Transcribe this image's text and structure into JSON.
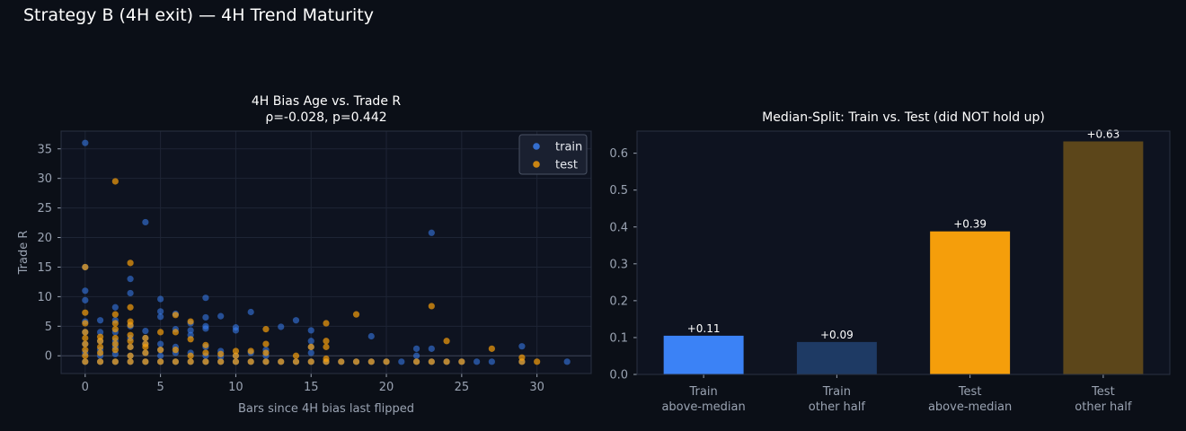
{
  "figure": {
    "title": "Strategy B (4H exit) — 4H Trend Maturity"
  },
  "colors": {
    "background": "#0b0f17",
    "axes_bg": "#0e1320",
    "grid": "#1e2535",
    "spine": "#2a3142",
    "train": "#3b82f6",
    "test": "#f59e0b",
    "train_dim": "#1e3a64",
    "test_dim": "#5c461a"
  },
  "chart_data": [
    {
      "type": "scatter",
      "title": "4H Bias Age vs. Trade R",
      "subtitle": "ρ=-0.028, p=0.442",
      "xlabel": "Bars since 4H bias last flipped",
      "ylabel": "Trade R",
      "xlim": [
        -1.6,
        33.6
      ],
      "ylim": [
        -3,
        38
      ],
      "xticks": [
        0,
        5,
        10,
        15,
        20,
        25,
        30
      ],
      "yticks": [
        0,
        5,
        10,
        15,
        20,
        25,
        30,
        35
      ],
      "grid": true,
      "legend": "top-right",
      "series": [
        {
          "name": "train",
          "points": [
            [
              0,
              36
            ],
            [
              0,
              15
            ],
            [
              0,
              11
            ],
            [
              0,
              9.4
            ],
            [
              0,
              5.8
            ],
            [
              0,
              4
            ],
            [
              0,
              2
            ],
            [
              0,
              0.5
            ],
            [
              0,
              -1
            ],
            [
              1,
              6
            ],
            [
              1,
              4
            ],
            [
              1,
              2.5
            ],
            [
              1,
              1
            ],
            [
              1,
              0
            ],
            [
              1,
              -1
            ],
            [
              2,
              8.2
            ],
            [
              2,
              6
            ],
            [
              2,
              4
            ],
            [
              2,
              2.5
            ],
            [
              2,
              1.5
            ],
            [
              2,
              0.3
            ],
            [
              2,
              -1
            ],
            [
              3,
              13
            ],
            [
              3,
              10.6
            ],
            [
              3,
              5
            ],
            [
              3,
              3
            ],
            [
              3,
              1.5
            ],
            [
              3,
              0
            ],
            [
              3,
              -1
            ],
            [
              4,
              22.6
            ],
            [
              4,
              4.2
            ],
            [
              4,
              3
            ],
            [
              4,
              2
            ],
            [
              4,
              0.5
            ],
            [
              4,
              -1
            ],
            [
              5,
              9.6
            ],
            [
              5,
              7.5
            ],
            [
              5,
              6.6
            ],
            [
              5,
              2
            ],
            [
              5,
              1
            ],
            [
              5,
              0
            ],
            [
              5,
              -1
            ],
            [
              6,
              7.1
            ],
            [
              6,
              4.5
            ],
            [
              6,
              1.5
            ],
            [
              6,
              0.5
            ],
            [
              6,
              -1
            ],
            [
              7,
              5.5
            ],
            [
              7,
              4.3
            ],
            [
              7,
              3.5
            ],
            [
              7,
              0.5
            ],
            [
              7,
              -1
            ],
            [
              8,
              9.8
            ],
            [
              8,
              6.5
            ],
            [
              8,
              5
            ],
            [
              8,
              4.6
            ],
            [
              8,
              1.5
            ],
            [
              8,
              0
            ],
            [
              8,
              -1
            ],
            [
              9,
              6.7
            ],
            [
              9,
              0.8
            ],
            [
              9,
              -0.2
            ],
            [
              9,
              -1
            ],
            [
              10,
              4.8
            ],
            [
              10,
              4.3
            ],
            [
              10,
              0
            ],
            [
              10,
              -1
            ],
            [
              11,
              7.4
            ],
            [
              11,
              0.5
            ],
            [
              11,
              -1
            ],
            [
              12,
              1
            ],
            [
              12,
              0
            ],
            [
              12,
              -1
            ],
            [
              13,
              4.9
            ],
            [
              13,
              -1
            ],
            [
              14,
              6
            ],
            [
              14,
              -1
            ],
            [
              15,
              4.3
            ],
            [
              15,
              2.5
            ],
            [
              15,
              1.5
            ],
            [
              15,
              0.5
            ],
            [
              15,
              -1
            ],
            [
              16,
              -1
            ],
            [
              17,
              -1
            ],
            [
              18,
              -1
            ],
            [
              19,
              3.3
            ],
            [
              19,
              -1
            ],
            [
              20,
              -1
            ],
            [
              21,
              -1
            ],
            [
              22,
              1.2
            ],
            [
              22,
              0
            ],
            [
              22,
              -1
            ],
            [
              23,
              20.8
            ],
            [
              23,
              1.2
            ],
            [
              23,
              -1
            ],
            [
              24,
              -1
            ],
            [
              25,
              -1
            ],
            [
              26,
              -1
            ],
            [
              27,
              -1
            ],
            [
              29,
              1.6
            ],
            [
              29,
              -1
            ],
            [
              32,
              -1
            ]
          ]
        },
        {
          "name": "test",
          "points": [
            [
              0,
              15
            ],
            [
              0,
              7.3
            ],
            [
              0,
              5.5
            ],
            [
              0,
              4
            ],
            [
              0,
              3
            ],
            [
              0,
              2
            ],
            [
              0,
              1
            ],
            [
              0,
              0
            ],
            [
              0,
              -1
            ],
            [
              1,
              3.2
            ],
            [
              1,
              2.5
            ],
            [
              1,
              1.5
            ],
            [
              1,
              0.5
            ],
            [
              1,
              -1
            ],
            [
              2,
              29.5
            ],
            [
              2,
              7
            ],
            [
              2,
              5.5
            ],
            [
              2,
              4.5
            ],
            [
              2,
              3
            ],
            [
              2,
              2
            ],
            [
              2,
              1
            ],
            [
              2,
              -1
            ],
            [
              3,
              15.7
            ],
            [
              3,
              8.2
            ],
            [
              3,
              5.8
            ],
            [
              3,
              5.2
            ],
            [
              3,
              3.5
            ],
            [
              3,
              2.5
            ],
            [
              3,
              1.5
            ],
            [
              3,
              0
            ],
            [
              3,
              -1
            ],
            [
              4,
              3
            ],
            [
              4,
              2
            ],
            [
              4,
              1.5
            ],
            [
              4,
              0.5
            ],
            [
              4,
              -1
            ],
            [
              5,
              4
            ],
            [
              5,
              1
            ],
            [
              5,
              -1
            ],
            [
              6,
              6.9
            ],
            [
              6,
              4
            ],
            [
              6,
              1
            ],
            [
              6,
              -1
            ],
            [
              7,
              5.8
            ],
            [
              7,
              2.8
            ],
            [
              7,
              0
            ],
            [
              7,
              -1
            ],
            [
              8,
              1.8
            ],
            [
              8,
              0.5
            ],
            [
              8,
              -1
            ],
            [
              9,
              0.3
            ],
            [
              9,
              -1
            ],
            [
              10,
              0.8
            ],
            [
              10,
              0
            ],
            [
              10,
              -1
            ],
            [
              11,
              0.8
            ],
            [
              11,
              -1
            ],
            [
              12,
              4.5
            ],
            [
              12,
              2
            ],
            [
              12,
              0.5
            ],
            [
              12,
              -1
            ],
            [
              13,
              -1
            ],
            [
              14,
              0
            ],
            [
              14,
              -1
            ],
            [
              15,
              1.5
            ],
            [
              15,
              -1
            ],
            [
              16,
              5.5
            ],
            [
              16,
              2.5
            ],
            [
              16,
              1.5
            ],
            [
              16,
              -0.5
            ],
            [
              16,
              -1
            ],
            [
              17,
              -1
            ],
            [
              18,
              7
            ],
            [
              18,
              -1
            ],
            [
              19,
              -1
            ],
            [
              20,
              -1
            ],
            [
              22,
              -1
            ],
            [
              23,
              8.4
            ],
            [
              23,
              -1
            ],
            [
              24,
              2.5
            ],
            [
              24,
              -1
            ],
            [
              25,
              -1
            ],
            [
              27,
              1.2
            ],
            [
              29,
              -0.3
            ],
            [
              29,
              -1
            ],
            [
              30,
              -1
            ]
          ]
        }
      ]
    },
    {
      "type": "bar",
      "title": "Median-Split: Train vs. Test (did NOT hold up)",
      "categories": [
        [
          "Train",
          "above-median"
        ],
        [
          "Train",
          "other half"
        ],
        [
          "Test",
          "above-median"
        ],
        [
          "Test",
          "other half"
        ]
      ],
      "values": [
        0.105,
        0.088,
        0.388,
        0.632
      ],
      "value_labels": [
        "+0.11",
        "+0.09",
        "+0.39",
        "+0.63"
      ],
      "bar_colors": [
        "#3b82f6",
        "#1e3a64",
        "#f59e0b",
        "#5c461a"
      ],
      "ylim": [
        0,
        0.66
      ],
      "yticks": [
        0.0,
        0.1,
        0.2,
        0.3,
        0.4,
        0.5,
        0.6
      ],
      "grid": false
    }
  ]
}
